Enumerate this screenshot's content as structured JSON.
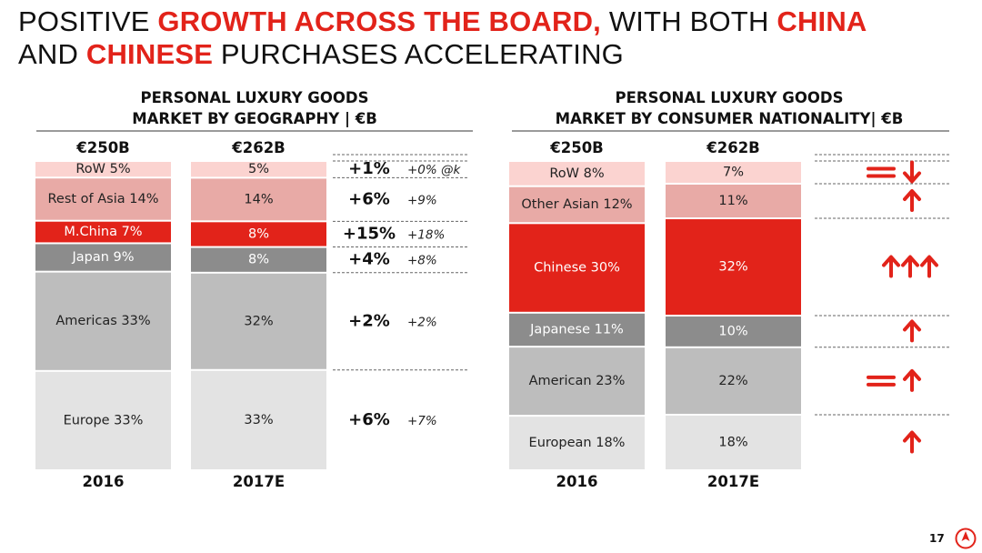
{
  "slide": {
    "title_parts": [
      "POSITIVE ",
      "GROWTH ACROSS THE BOARD,",
      " WITH BOTH ",
      "CHINA",
      " AND ",
      "CHINESE",
      " PURCHASES ACCELERATING"
    ],
    "page_number": "17"
  },
  "colors": {
    "accent": "#e2231a"
  },
  "chart_data": [
    {
      "type": "stacked-bar",
      "title_lines": [
        "PERSONAL LUXURY GOODS",
        "MARKET BY GEOGRAPHY | €B"
      ],
      "categories": [
        "2016",
        "2017E"
      ],
      "totals": [
        "€250B",
        "€262B"
      ],
      "segments": [
        {
          "name": "Europe",
          "values": [
            33,
            33
          ],
          "labels": [
            "Europe 33%",
            "33%"
          ],
          "color": "#e3e3e3",
          "text_color": "#222222",
          "growth": "+6%",
          "growth_detail": "+7%"
        },
        {
          "name": "Americas",
          "values": [
            33,
            32
          ],
          "labels": [
            "Americas 33%",
            "32%"
          ],
          "color": "#bdbdbd",
          "text_color": "#222222",
          "growth": "+2%",
          "growth_detail": "+2%"
        },
        {
          "name": "Japan",
          "values": [
            9,
            8
          ],
          "labels": [
            "Japan 9%",
            "8%"
          ],
          "color": "#8c8c8c",
          "text_color": "#ffffff",
          "growth": "+4%",
          "growth_detail": "+8%"
        },
        {
          "name": "M.China",
          "values": [
            7,
            8
          ],
          "labels": [
            "M.China 7%",
            "8%"
          ],
          "color": "#e2231a",
          "text_color": "#ffffff",
          "growth": "+15%",
          "growth_detail": "+18%"
        },
        {
          "name": "Rest of Asia",
          "values": [
            14,
            14
          ],
          "labels": [
            "Rest of Asia 14%",
            "14%"
          ],
          "color": "#e8aaa6",
          "text_color": "#222222",
          "growth": "+6%",
          "growth_detail": "+9%"
        },
        {
          "name": "RoW",
          "values": [
            5,
            5
          ],
          "labels": [
            "RoW 5%",
            "5%"
          ],
          "color": "#fbd3d0",
          "text_color": "#222222",
          "growth": "+1%",
          "growth_detail": "+0% @k"
        }
      ]
    },
    {
      "type": "stacked-bar",
      "title_lines": [
        "PERSONAL LUXURY GOODS",
        "MARKET BY CONSUMER  NATIONALITY| €B"
      ],
      "categories": [
        "2016",
        "2017E"
      ],
      "totals": [
        "€250B",
        "€262B"
      ],
      "segments": [
        {
          "name": "European",
          "values": [
            18,
            18
          ],
          "labels": [
            "European 18%",
            "18%"
          ],
          "color": "#e3e3e3",
          "text_color": "#222222",
          "trend": "up"
        },
        {
          "name": "American",
          "values": [
            23,
            22
          ],
          "labels": [
            "American 23%",
            "22%"
          ],
          "color": "#bdbdbd",
          "text_color": "#222222",
          "trend": "equal-up"
        },
        {
          "name": "Japanese",
          "values": [
            11,
            10
          ],
          "labels": [
            "Japanese 11%",
            "10%"
          ],
          "color": "#8c8c8c",
          "text_color": "#ffffff",
          "trend": "up"
        },
        {
          "name": "Chinese",
          "values": [
            30,
            32
          ],
          "labels": [
            "Chinese 30%",
            "32%"
          ],
          "color": "#e2231a",
          "text_color": "#ffffff",
          "trend": "triple-up"
        },
        {
          "name": "Other Asian",
          "values": [
            12,
            11
          ],
          "labels": [
            "Other Asian 12%",
            "11%"
          ],
          "color": "#e8aaa6",
          "text_color": "#222222",
          "trend": "up"
        },
        {
          "name": "RoW",
          "values": [
            8,
            7
          ],
          "labels": [
            "RoW 8%",
            "7%"
          ],
          "color": "#fbd3d0",
          "text_color": "#222222",
          "trend": "equal-down"
        }
      ]
    }
  ]
}
